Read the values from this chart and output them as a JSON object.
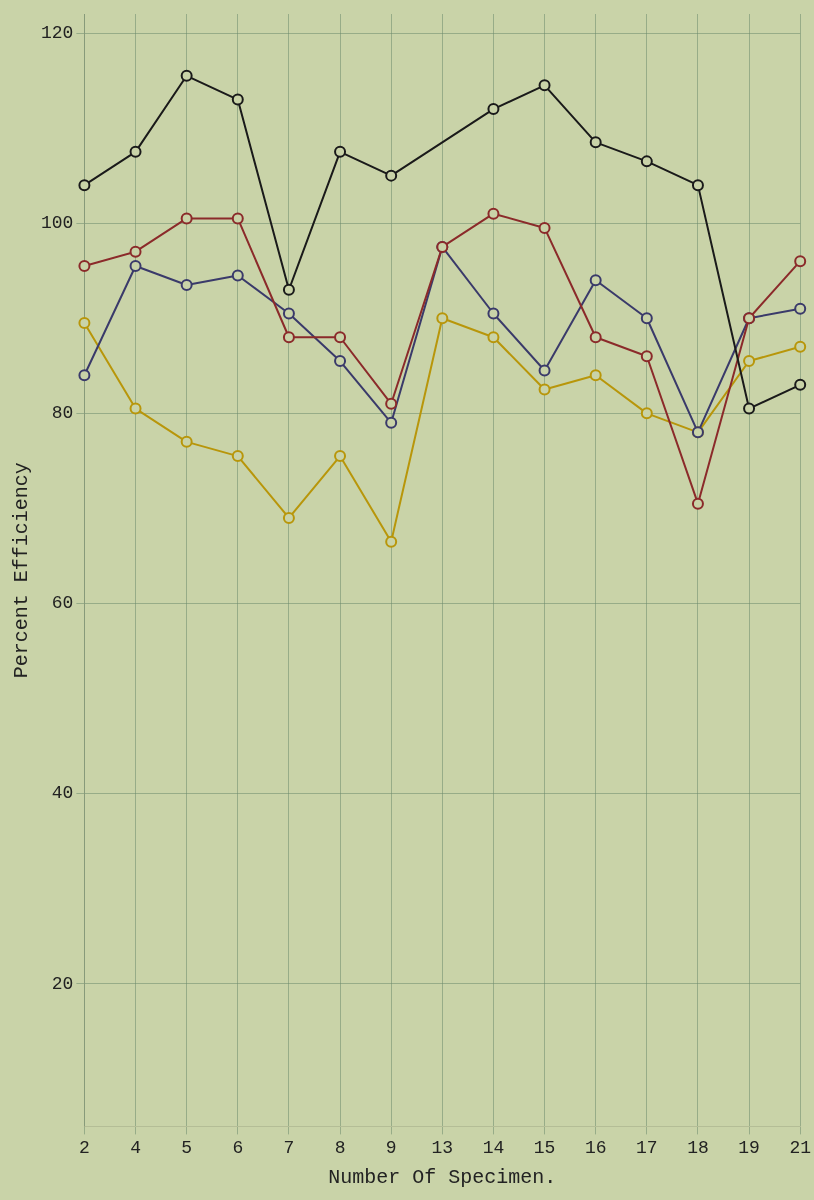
{
  "chart_data": {
    "type": "line",
    "xlabel": "Number Of Specimen.",
    "ylabel": "Percent Efficiency",
    "categories": [
      "2",
      "4",
      "5",
      "6",
      "7",
      "8",
      "9",
      "13",
      "14",
      "15",
      "16",
      "17",
      "18",
      "19",
      "21"
    ],
    "series": [
      {
        "color": "#1a1a1a",
        "values": [
          104,
          107.5,
          115.5,
          113,
          93,
          107.5,
          105,
          null,
          112,
          114.5,
          108.5,
          106.5,
          104,
          80.5,
          83
        ]
      },
      {
        "color": "#8b2a2a",
        "values": [
          95.5,
          97,
          100.5,
          100.5,
          88,
          88,
          81,
          97.5,
          101,
          99.5,
          88,
          86,
          70.5,
          90,
          96
        ]
      },
      {
        "color": "#3a3a6a",
        "values": [
          84,
          95.5,
          93.5,
          94.5,
          90.5,
          85.5,
          79,
          97.5,
          90.5,
          84.5,
          94,
          90,
          78,
          90,
          91
        ]
      },
      {
        "color": "#b8960a",
        "values": [
          89.5,
          80.5,
          77,
          75.5,
          69,
          75.5,
          66.5,
          90,
          88,
          82.5,
          84,
          80,
          78,
          85.5,
          87
        ]
      }
    ],
    "ylim": [
      5,
      122
    ],
    "yticks": [
      20,
      40,
      60,
      80,
      100,
      120
    ],
    "grid": true,
    "marker": "circle",
    "line_style": "solid"
  }
}
